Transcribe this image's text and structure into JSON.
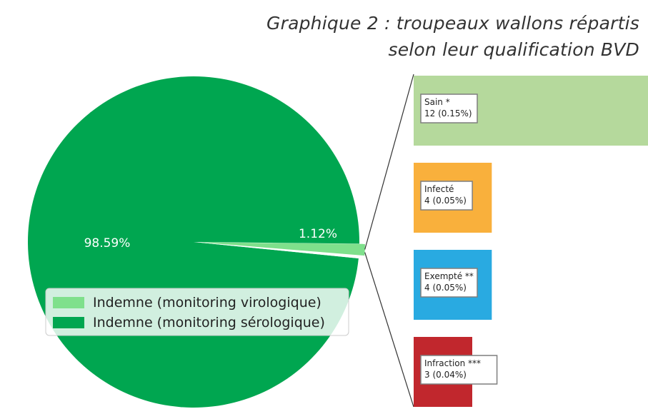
{
  "title": {
    "line1": "Graphique 2 : troupeaux wallons répartis",
    "line2": "selon leur qualification BVD"
  },
  "chart_data": [
    {
      "type": "pie",
      "slices": [
        {
          "label": "Indemne (monitoring virologique)",
          "value": 1.12,
          "display": "1.12%",
          "color": "#7fe08c"
        },
        {
          "label": "Indemne (monitoring sérologique)",
          "value": 98.59,
          "display": "98.59%",
          "color": "#00a650"
        },
        {
          "label": "",
          "value": 0.29,
          "display": "",
          "color": "#ffffff"
        }
      ],
      "legend": {
        "position": "center-left",
        "entries": [
          {
            "label": "Indemne (monitoring virologique)",
            "color": "#7fe08c"
          },
          {
            "label": "Indemne (monitoring sérologique)",
            "color": "#00a650"
          }
        ]
      }
    },
    {
      "type": "bar",
      "orientation": "horizontal",
      "categories": [
        "Sain *",
        "Infecté",
        "Exempté **",
        "Infraction ***"
      ],
      "values": [
        12,
        4,
        4,
        3
      ],
      "percent_labels": [
        "12 (0.15%)",
        "4 (0.05%)",
        "4 (0.05%)",
        "3 (0.04%)"
      ],
      "colors": [
        "#b5d99c",
        "#f9b03c",
        "#29aae1",
        "#c1272d"
      ]
    }
  ]
}
